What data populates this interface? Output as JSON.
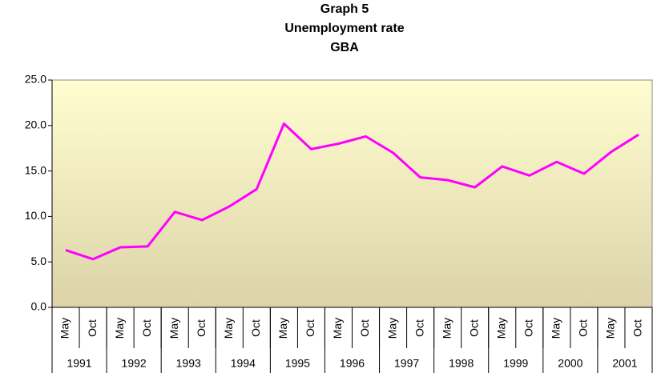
{
  "chart_data": {
    "type": "line",
    "title": [
      "Graph 5",
      "Unemployment rate",
      "GBA"
    ],
    "categories": [
      "May",
      "Oct",
      "May",
      "Oct",
      "May",
      "Oct",
      "May",
      "Oct",
      "May",
      "Oct",
      "May",
      "Oct",
      "May",
      "Oct",
      "May",
      "Oct",
      "May",
      "Oct",
      "May",
      "Oct",
      "May",
      "Oct"
    ],
    "years": [
      "1991",
      "1992",
      "1993",
      "1994",
      "1995",
      "1996",
      "1997",
      "1998",
      "1999",
      "2000",
      "2001"
    ],
    "series": [
      {
        "color": "#ff00ff",
        "values": [
          6.3,
          5.3,
          6.6,
          6.7,
          10.5,
          9.6,
          11.1,
          13.0,
          20.2,
          17.4,
          18.0,
          18.8,
          17.0,
          14.3,
          14.0,
          13.2,
          15.5,
          14.5,
          16.0,
          14.7,
          17.1,
          19.0
        ]
      }
    ],
    "ylim": [
      0,
      25
    ],
    "yticks": [
      {
        "value": 0,
        "label": "0.0"
      },
      {
        "value": 5,
        "label": "5.0"
      },
      {
        "value": 10,
        "label": "10.0"
      },
      {
        "value": 15,
        "label": "15.0"
      },
      {
        "value": 20,
        "label": "20.0"
      },
      {
        "value": 25,
        "label": "25.0"
      }
    ]
  }
}
